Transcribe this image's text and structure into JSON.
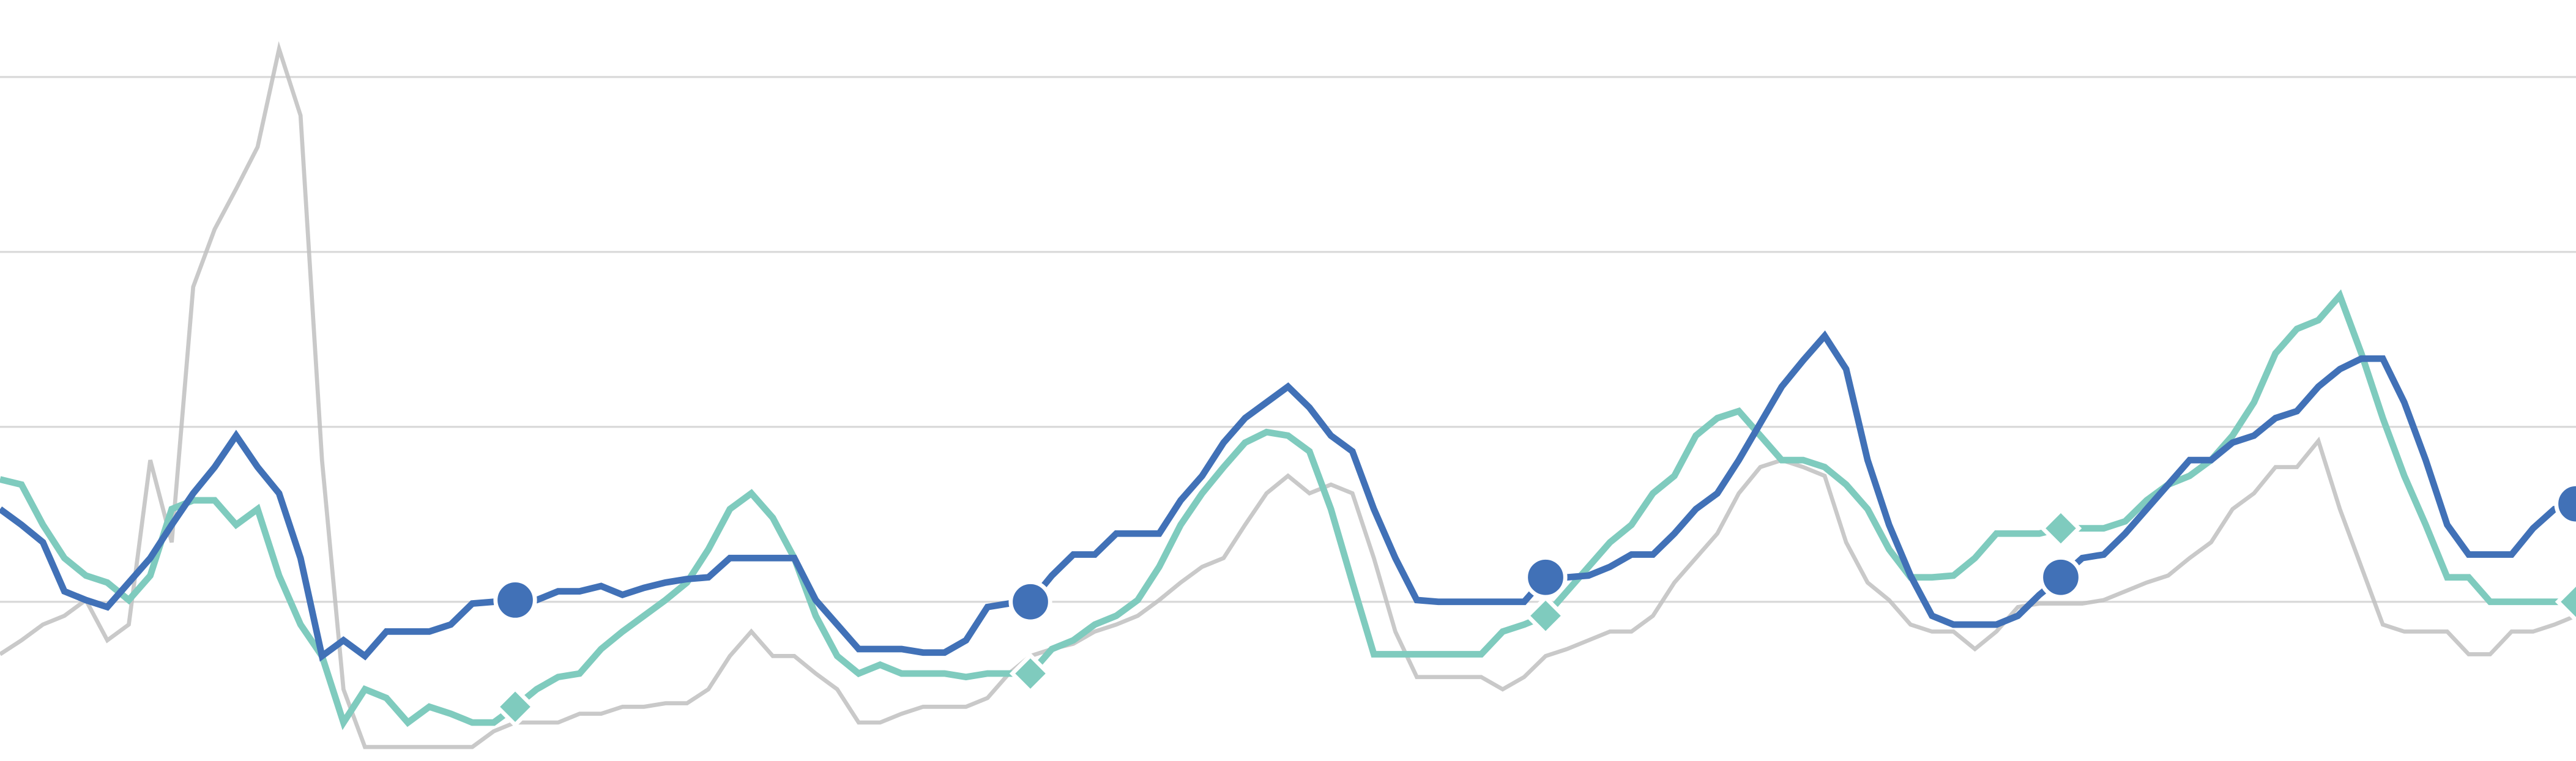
{
  "chart_data": {
    "type": "line",
    "ylim": [
      0.09,
      4.44
    ],
    "yticks": [
      1,
      2,
      3,
      4
    ],
    "grid": true,
    "series": [
      {
        "color": "#4171b7",
        "marker": "circle",
        "marker_every": 24,
        "values": [
          1.53,
          1.44,
          1.34,
          1.06,
          1.01,
          0.97,
          1.11,
          1.25,
          1.44,
          1.62,
          1.77,
          1.95,
          1.77,
          1.62,
          1.25,
          0.69,
          0.78,
          0.69,
          0.83,
          0.83,
          0.83,
          0.87,
          0.99,
          1.0,
          1.01,
          1.01,
          1.06,
          1.06,
          1.09,
          1.04,
          1.08,
          1.11,
          1.13,
          1.14,
          1.25,
          1.25,
          1.25,
          1.25,
          1.01,
          0.87,
          0.73,
          0.73,
          0.73,
          0.71,
          0.71,
          0.78,
          0.97,
          0.99,
          1.0,
          1.15,
          1.27,
          1.27,
          1.39,
          1.39,
          1.39,
          1.58,
          1.72,
          1.91,
          2.05,
          2.14,
          2.23,
          2.11,
          1.95,
          1.86,
          1.53,
          1.25,
          1.01,
          1.0,
          1.0,
          1.0,
          1.0,
          1.0,
          1.14,
          1.14,
          1.15,
          1.2,
          1.27,
          1.27,
          1.39,
          1.53,
          1.62,
          1.81,
          2.02,
          2.23,
          2.38,
          2.52,
          2.33,
          1.81,
          1.44,
          1.15,
          0.92,
          0.87,
          0.87,
          0.87,
          0.92,
          1.04,
          1.14,
          1.25,
          1.27,
          1.39,
          1.53,
          1.67,
          1.81,
          1.81,
          1.91,
          1.95,
          2.05,
          2.09,
          2.23,
          2.33,
          2.39,
          2.39,
          2.14,
          1.81,
          1.44,
          1.27,
          1.27,
          1.27,
          1.42,
          1.53,
          1.56
        ]
      },
      {
        "color": "#7fcbbe",
        "marker": "diamond",
        "marker_every": 24,
        "values": [
          1.7,
          1.67,
          1.44,
          1.25,
          1.15,
          1.11,
          1.01,
          1.15,
          1.53,
          1.58,
          1.58,
          1.44,
          1.53,
          1.15,
          0.87,
          0.69,
          0.31,
          0.5,
          0.45,
          0.31,
          0.4,
          0.36,
          0.31,
          0.31,
          0.4,
          0.5,
          0.57,
          0.59,
          0.73,
          0.83,
          0.92,
          1.01,
          1.11,
          1.3,
          1.53,
          1.62,
          1.48,
          1.25,
          0.92,
          0.69,
          0.59,
          0.64,
          0.59,
          0.59,
          0.59,
          0.57,
          0.59,
          0.59,
          0.59,
          0.73,
          0.78,
          0.87,
          0.92,
          1.01,
          1.2,
          1.44,
          1.62,
          1.77,
          1.91,
          1.97,
          1.95,
          1.86,
          1.53,
          1.11,
          0.7,
          0.7,
          0.7,
          0.7,
          0.7,
          0.7,
          0.83,
          0.87,
          0.92,
          1.06,
          1.2,
          1.34,
          1.44,
          1.62,
          1.72,
          1.95,
          2.05,
          2.09,
          1.95,
          1.81,
          1.81,
          1.77,
          1.67,
          1.53,
          1.3,
          1.14,
          1.14,
          1.15,
          1.25,
          1.39,
          1.39,
          1.39,
          1.42,
          1.42,
          1.42,
          1.46,
          1.58,
          1.67,
          1.72,
          1.81,
          1.95,
          2.14,
          2.42,
          2.56,
          2.61,
          2.75,
          2.42,
          2.05,
          1.72,
          1.44,
          1.14,
          1.14,
          1.0,
          1.0,
          1.0,
          1.0,
          1.0
        ]
      },
      {
        "color": "#bfbfbf",
        "values": [
          0.7,
          0.78,
          0.87,
          0.92,
          1.01,
          0.78,
          0.87,
          1.81,
          1.34,
          2.8,
          3.13,
          3.36,
          3.6,
          4.16,
          3.78,
          1.81,
          0.5,
          0.17,
          0.17,
          0.17,
          0.17,
          0.17,
          0.17,
          0.26,
          0.31,
          0.31,
          0.31,
          0.36,
          0.36,
          0.4,
          0.4,
          0.42,
          0.42,
          0.5,
          0.69,
          0.83,
          0.69,
          0.69,
          0.59,
          0.5,
          0.31,
          0.31,
          0.36,
          0.4,
          0.4,
          0.4,
          0.45,
          0.59,
          0.69,
          0.73,
          0.76,
          0.83,
          0.87,
          0.92,
          1.01,
          1.11,
          1.2,
          1.25,
          1.44,
          1.62,
          1.72,
          1.62,
          1.67,
          1.62,
          1.25,
          0.83,
          0.57,
          0.57,
          0.57,
          0.57,
          0.5,
          0.57,
          0.69,
          0.73,
          0.78,
          0.83,
          0.83,
          0.92,
          1.11,
          1.25,
          1.39,
          1.62,
          1.77,
          1.81,
          1.77,
          1.72,
          1.34,
          1.11,
          1.01,
          0.87,
          0.83,
          0.83,
          0.73,
          0.83,
          0.97,
          0.99,
          0.99,
          0.99,
          1.01,
          1.06,
          1.11,
          1.15,
          1.25,
          1.34,
          1.53,
          1.62,
          1.77,
          1.77,
          1.92,
          1.53,
          1.2,
          0.87,
          0.83,
          0.83,
          0.83,
          0.7,
          0.7,
          0.83,
          0.83,
          0.87,
          0.92
        ]
      }
    ]
  }
}
